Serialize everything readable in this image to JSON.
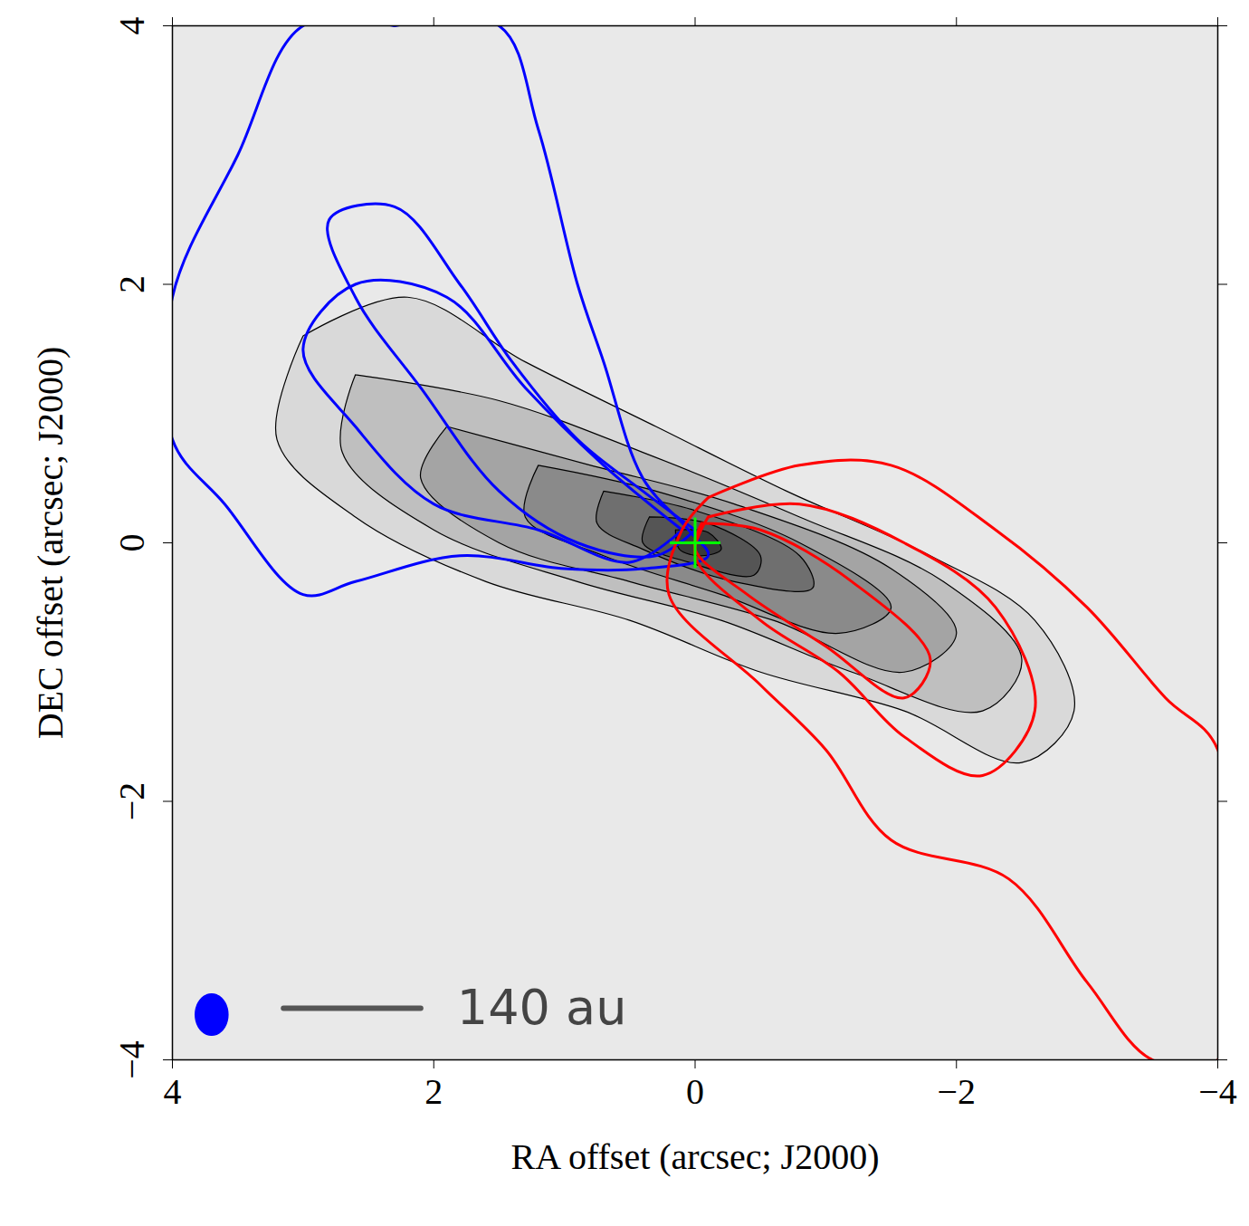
{
  "chart_data": {
    "type": "contour",
    "x_label": "RA offset (arcsec; J2000)",
    "y_label": "DEC offset (arcsec; J2000)",
    "xlim": [
      4,
      -4
    ],
    "ylim": [
      -4,
      4
    ],
    "xticks": [
      4,
      2,
      0,
      {
        "value": -2,
        "label": "−2"
      },
      {
        "value": -4,
        "label": "−4"
      }
    ],
    "yticks": [
      {
        "value": -4,
        "label": "−4"
      },
      {
        "value": -2,
        "label": "−2"
      },
      0,
      2,
      4
    ],
    "series": [
      {
        "type": "filled_contour",
        "color": "black",
        "line_style": "thin",
        "contours": [
          [
            [
              3.0,
              1.6
            ],
            [
              2.2,
              1.9
            ],
            [
              1.3,
              1.4
            ],
            [
              0.3,
              0.9
            ],
            [
              -0.7,
              0.4
            ],
            [
              -1.8,
              -0.1
            ],
            [
              -2.6,
              -0.6
            ],
            [
              -2.9,
              -1.3
            ],
            [
              -2.5,
              -1.7
            ],
            [
              -1.6,
              -1.3
            ],
            [
              -0.5,
              -1.0
            ],
            [
              0.5,
              -0.6
            ],
            [
              1.6,
              -0.3
            ],
            [
              2.6,
              0.2
            ],
            [
              3.2,
              0.8
            ],
            [
              3.0,
              1.6
            ]
          ],
          [
            [
              2.6,
              1.3
            ],
            [
              1.5,
              1.1
            ],
            [
              0.4,
              0.7
            ],
            [
              -0.8,
              0.2
            ],
            [
              -1.9,
              -0.3
            ],
            [
              -2.5,
              -0.9
            ],
            [
              -2.2,
              -1.3
            ],
            [
              -1.2,
              -1.0
            ],
            [
              -0.2,
              -0.6
            ],
            [
              0.9,
              -0.3
            ],
            [
              2.0,
              0.1
            ],
            [
              2.7,
              0.7
            ],
            [
              2.6,
              1.3
            ]
          ],
          [
            [
              1.9,
              0.9
            ],
            [
              0.8,
              0.6
            ],
            [
              -0.3,
              0.3
            ],
            [
              -1.5,
              -0.2
            ],
            [
              -2.0,
              -0.7
            ],
            [
              -1.6,
              -1.0
            ],
            [
              -0.6,
              -0.6
            ],
            [
              0.5,
              -0.3
            ],
            [
              1.5,
              0.0
            ],
            [
              2.1,
              0.5
            ],
            [
              1.9,
              0.9
            ]
          ],
          [
            [
              1.2,
              0.6
            ],
            [
              0.3,
              0.4
            ],
            [
              -0.8,
              0.0
            ],
            [
              -1.5,
              -0.5
            ],
            [
              -1.1,
              -0.7
            ],
            [
              -0.2,
              -0.4
            ],
            [
              0.7,
              -0.1
            ],
            [
              1.3,
              0.2
            ],
            [
              1.2,
              0.6
            ]
          ],
          [
            [
              0.7,
              0.4
            ],
            [
              0.0,
              0.25
            ],
            [
              -0.8,
              -0.1
            ],
            [
              -0.9,
              -0.35
            ],
            [
              -0.3,
              -0.3
            ],
            [
              0.4,
              -0.05
            ],
            [
              0.75,
              0.15
            ],
            [
              0.7,
              0.4
            ]
          ],
          [
            [
              0.35,
              0.2
            ],
            [
              -0.1,
              0.15
            ],
            [
              -0.5,
              -0.1
            ],
            [
              -0.45,
              -0.25
            ],
            [
              0.05,
              -0.15
            ],
            [
              0.4,
              0.0
            ],
            [
              0.35,
              0.2
            ]
          ],
          [
            [
              0.15,
              0.1
            ],
            [
              -0.1,
              0.08
            ],
            [
              -0.2,
              -0.05
            ],
            [
              -0.05,
              -0.1
            ],
            [
              0.12,
              -0.05
            ],
            [
              0.15,
              0.1
            ]
          ]
        ]
      },
      {
        "type": "contour",
        "color": "blue",
        "line_style": "thick",
        "contours": [
          [
            [
              2.3,
              4.0
            ],
            [
              1.5,
              4.0
            ],
            [
              1.2,
              3.2
            ],
            [
              0.9,
              2.0
            ],
            [
              0.7,
              1.4
            ],
            [
              0.4,
              0.5
            ],
            [
              0.05,
              0.1
            ],
            [
              -0.1,
              -0.1
            ],
            [
              0.4,
              -0.2
            ],
            [
              1.0,
              -0.2
            ],
            [
              1.8,
              -0.1
            ],
            [
              2.6,
              -0.3
            ],
            [
              3.0,
              -0.4
            ],
            [
              3.6,
              0.3
            ],
            [
              4.0,
              0.8
            ],
            [
              4.0,
              1.9
            ],
            [
              3.5,
              3.0
            ],
            [
              3.0,
              4.0
            ],
            [
              2.3,
              4.0
            ]
          ],
          [
            [
              0.1,
              0.1
            ],
            [
              0.7,
              0.6
            ],
            [
              1.3,
              1.2
            ],
            [
              1.9,
              1.9
            ],
            [
              2.6,
              2.0
            ],
            [
              3.0,
              1.5
            ],
            [
              2.6,
              0.9
            ],
            [
              2.0,
              0.3
            ],
            [
              1.2,
              0.1
            ],
            [
              0.5,
              -0.15
            ],
            [
              0.1,
              0.1
            ]
          ],
          [
            [
              0.0,
              0.1
            ],
            [
              0.4,
              0.4
            ],
            [
              0.9,
              0.8
            ],
            [
              1.4,
              1.4
            ],
            [
              1.8,
              2.0
            ],
            [
              2.3,
              2.6
            ],
            [
              2.8,
              2.5
            ],
            [
              2.6,
              1.9
            ],
            [
              2.1,
              1.2
            ],
            [
              1.5,
              0.4
            ],
            [
              0.9,
              0.0
            ],
            [
              0.3,
              -0.1
            ],
            [
              0.0,
              0.1
            ]
          ]
        ]
      },
      {
        "type": "contour",
        "color": "red",
        "line_style": "thick",
        "contours": [
          [
            [
              -0.1,
              0.35
            ],
            [
              -0.8,
              0.6
            ],
            [
              -1.5,
              0.6
            ],
            [
              -2.3,
              0.1
            ],
            [
              -3.0,
              -0.5
            ],
            [
              -3.6,
              -1.2
            ],
            [
              -4.0,
              -1.6
            ],
            [
              -4.0,
              -4.0
            ],
            [
              -3.5,
              -4.0
            ],
            [
              -3.0,
              -3.4
            ],
            [
              -2.4,
              -2.6
            ],
            [
              -1.5,
              -2.3
            ],
            [
              -1.0,
              -1.6
            ],
            [
              -0.5,
              -1.1
            ],
            [
              0.2,
              -0.4
            ],
            [
              0.1,
              0.1
            ],
            [
              -0.1,
              0.35
            ]
          ],
          [
            [
              -0.1,
              0.2
            ],
            [
              -0.8,
              0.3
            ],
            [
              -1.6,
              0.0
            ],
            [
              -2.3,
              -0.5
            ],
            [
              -2.6,
              -1.3
            ],
            [
              -2.2,
              -1.8
            ],
            [
              -1.6,
              -1.5
            ],
            [
              -1.1,
              -1.0
            ],
            [
              -0.5,
              -0.6
            ],
            [
              0.0,
              -0.1
            ],
            [
              -0.1,
              0.2
            ]
          ],
          [
            [
              -0.05,
              0.15
            ],
            [
              -0.5,
              0.1
            ],
            [
              -1.2,
              -0.3
            ],
            [
              -1.8,
              -0.9
            ],
            [
              -1.6,
              -1.2
            ],
            [
              -1.0,
              -0.8
            ],
            [
              -0.4,
              -0.4
            ],
            [
              0.0,
              -0.05
            ],
            [
              -0.05,
              0.15
            ]
          ]
        ]
      }
    ],
    "marker": {
      "x": 0,
      "y": 0,
      "color": "#00ff00",
      "marker": "cross"
    },
    "beam": {
      "x": 3.7,
      "y": -3.65,
      "major": 0.32,
      "minor": 0.25,
      "color": "blue"
    },
    "scalebar": {
      "x1": 3.15,
      "x2": 2.1,
      "y": -3.6,
      "label": "140 au",
      "color": "#555555"
    }
  }
}
